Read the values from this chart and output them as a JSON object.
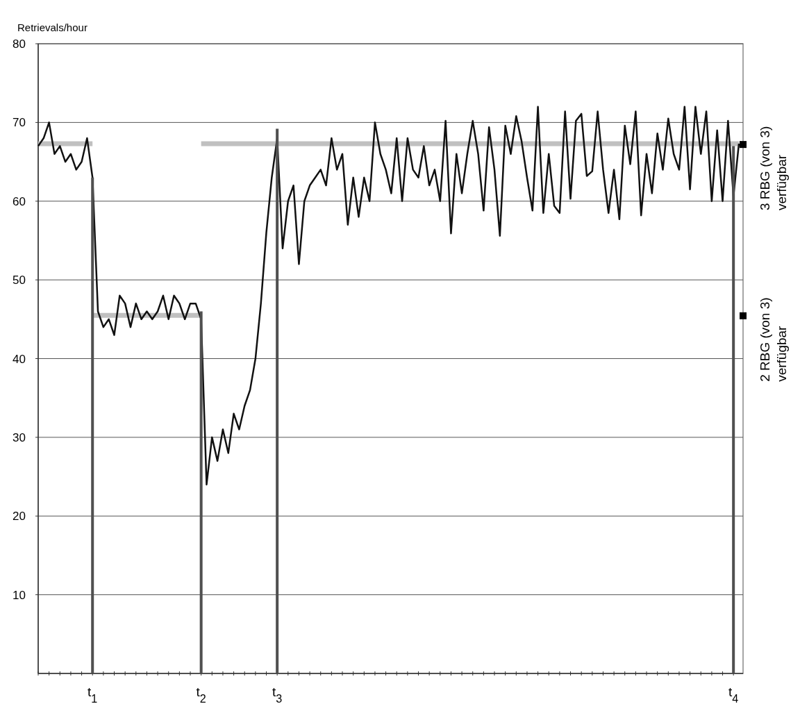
{
  "chart_data": {
    "type": "line",
    "ylabel": "Retrievals/hour",
    "ylim": [
      0,
      80
    ],
    "yticks": [
      10,
      20,
      30,
      40,
      50,
      60,
      70,
      80
    ],
    "categories": [
      null,
      null,
      null,
      null,
      null,
      null,
      null,
      null,
      null,
      null,
      "t$_{1}$",
      null,
      null,
      null,
      null,
      null,
      null,
      null,
      null,
      null,
      null,
      null,
      null,
      null,
      null,
      null,
      null,
      null,
      null,
      null,
      "t$_{2}$",
      null,
      null,
      null,
      null,
      null,
      null,
      null,
      null,
      null,
      null,
      null,
      null,
      null,
      "t$_{3}$",
      null,
      null,
      null,
      null,
      null,
      null,
      null,
      null,
      null,
      null,
      null,
      null,
      null,
      null,
      null,
      null,
      null,
      null,
      null,
      null,
      null,
      null,
      null,
      null,
      null,
      null,
      null,
      null,
      null,
      null,
      null,
      null,
      null,
      null,
      null,
      null,
      null,
      null,
      null,
      null,
      null,
      null,
      null,
      null,
      null,
      null,
      null,
      null,
      null,
      null,
      null,
      null,
      null,
      null,
      null,
      null,
      null,
      null,
      null,
      null,
      null,
      null,
      null,
      null,
      null,
      null,
      null,
      null,
      null,
      null,
      null,
      null,
      null,
      null,
      null,
      null,
      null,
      null,
      null,
      null,
      null,
      null,
      null,
      "t$_{4}$",
      null
    ],
    "grid": "y",
    "marker": "none",
    "line_style": "solid",
    "series": [
      {
        "color": "#c0c0c0",
        "values": [
          67.3,
          67.3,
          67.3,
          67.3,
          67.3,
          67.3,
          67.3,
          67.3,
          67.3,
          67.3,
          67.3,
          null,
          null,
          null,
          null,
          null,
          null,
          null,
          null,
          null,
          null,
          null,
          null,
          null,
          null,
          null,
          null,
          null,
          null,
          null,
          null,
          null,
          null,
          null,
          null,
          null,
          null,
          null,
          null,
          null,
          null,
          null,
          null,
          null,
          null,
          null,
          null,
          null,
          null,
          null,
          null,
          null,
          null,
          null,
          null,
          null,
          null,
          null,
          null,
          null,
          null,
          null,
          null,
          null,
          null,
          null,
          null,
          null,
          null,
          null,
          null,
          null,
          null,
          null,
          null,
          null,
          null,
          null,
          null,
          null,
          null,
          null,
          null,
          null,
          null,
          null,
          null,
          null,
          null,
          null,
          null,
          null,
          null,
          null,
          null,
          null,
          null,
          null,
          null,
          null,
          null,
          null,
          null,
          null,
          null,
          null,
          null,
          null,
          null,
          null,
          null,
          null,
          null,
          null,
          null,
          null,
          null,
          null,
          null,
          null,
          null,
          null,
          null,
          null,
          null,
          null,
          null,
          null,
          null,
          null
        ]
      },
      {
        "color": "#c0c0c0",
        "values": [
          null,
          null,
          null,
          null,
          null,
          null,
          null,
          null,
          null,
          null,
          45.5,
          45.5,
          45.5,
          45.5,
          45.5,
          45.5,
          45.5,
          45.5,
          45.5,
          45.5,
          45.5,
          45.5,
          45.5,
          45.5,
          45.5,
          45.5,
          45.5,
          45.5,
          45.5,
          45.5,
          45.5,
          null,
          null,
          null,
          null,
          null,
          null,
          null,
          null,
          null,
          null,
          null,
          null,
          null,
          null,
          null,
          null,
          null,
          null,
          null,
          null,
          null,
          null,
          null,
          null,
          null,
          null,
          null,
          null,
          null,
          null,
          null,
          null,
          null,
          null,
          null,
          null,
          null,
          null,
          null,
          null,
          null,
          null,
          null,
          null,
          null,
          null,
          null,
          null,
          null,
          null,
          null,
          null,
          null,
          null,
          null,
          null,
          null,
          null,
          null,
          null,
          null,
          null,
          null,
          null,
          null,
          null,
          null,
          null,
          null,
          null,
          null,
          null,
          null,
          null,
          null,
          null,
          null,
          null,
          null,
          null,
          null,
          null,
          null,
          null,
          null,
          null,
          null,
          null,
          null,
          null,
          null,
          null,
          null,
          null,
          null,
          null,
          null,
          null,
          null
        ]
      },
      {
        "color": "#c0c0c0",
        "values": [
          null,
          null,
          null,
          null,
          null,
          null,
          null,
          null,
          null,
          null,
          null,
          null,
          null,
          null,
          null,
          null,
          null,
          null,
          null,
          null,
          null,
          null,
          null,
          null,
          null,
          null,
          null,
          null,
          null,
          null,
          67.3,
          67.3,
          67.3,
          67.3,
          67.3,
          67.3,
          67.3,
          67.3,
          67.3,
          67.3,
          67.3,
          67.3,
          67.3,
          67.3,
          67.3,
          67.3,
          67.3,
          67.3,
          67.3,
          67.3,
          67.3,
          67.3,
          67.3,
          67.3,
          67.3,
          67.3,
          67.3,
          67.3,
          67.3,
          67.3,
          67.3,
          67.3,
          67.3,
          67.3,
          67.3,
          67.3,
          67.3,
          67.3,
          67.3,
          67.3,
          67.3,
          67.3,
          67.3,
          67.3,
          67.3,
          67.3,
          67.3,
          67.3,
          67.3,
          67.3,
          67.3,
          67.3,
          67.3,
          67.3,
          67.3,
          67.3,
          67.3,
          67.3,
          67.3,
          67.3,
          67.3,
          67.3,
          67.3,
          67.3,
          67.3,
          67.3,
          67.3,
          67.3,
          67.3,
          67.3,
          67.3,
          67.3,
          67.3,
          67.3,
          67.3,
          67.3,
          67.3,
          67.3,
          67.3,
          67.3,
          67.3,
          67.3,
          67.3,
          67.3,
          67.3,
          67.3,
          67.3,
          67.3,
          67.3,
          67.3,
          67.3,
          67.3,
          67.3,
          67.3,
          67.3,
          67.3,
          67.3,
          67.3,
          67.3,
          67.3
        ]
      },
      {
        "color": "#111111",
        "values": [
          67,
          68,
          70,
          66,
          67,
          65,
          66,
          64,
          65,
          68,
          63,
          46,
          44,
          45,
          43,
          48,
          47,
          44,
          47,
          45,
          46,
          45,
          46,
          48,
          45,
          48,
          47,
          45,
          47,
          47,
          45,
          24,
          30,
          27,
          31,
          28,
          33,
          31,
          34,
          36,
          40,
          47,
          56,
          63,
          68,
          54,
          60,
          62,
          52,
          60,
          62,
          63,
          64,
          62,
          68,
          64,
          66,
          57,
          63,
          58,
          63,
          60,
          70,
          66,
          64,
          61,
          68,
          60,
          68,
          64,
          63,
          67,
          62,
          64,
          60,
          70.2,
          55.9,
          66,
          61,
          66,
          70.2,
          66,
          58.8,
          69.4,
          64,
          55.6,
          69.6,
          66,
          70.8,
          67.6,
          63,
          58.8,
          72,
          58.5,
          66,
          59.4,
          58.5,
          71.4,
          60.3,
          70.2,
          71.1,
          63.2,
          63.8,
          71.4,
          64,
          58.5,
          64,
          57.7,
          69.6,
          64.7,
          71.4,
          58.2,
          66,
          61,
          68.6,
          64,
          70.5,
          66,
          64,
          72,
          61.5,
          72,
          66,
          71.4,
          60,
          69,
          60,
          70.2,
          60.6,
          67.3
        ]
      },
      {
        "type": "bar",
        "color": "#505050",
        "values": [
          null,
          null,
          null,
          null,
          null,
          null,
          null,
          null,
          null,
          null,
          63,
          null,
          null,
          null,
          null,
          null,
          null,
          null,
          null,
          null,
          null,
          null,
          null,
          null,
          null,
          null,
          null,
          null,
          null,
          null,
          46,
          null,
          null,
          null,
          null,
          null,
          null,
          null,
          null,
          null,
          null,
          null,
          null,
          null,
          69.2,
          null,
          null,
          null,
          null,
          null,
          null,
          null,
          null,
          null,
          null,
          null,
          null,
          null,
          null,
          null,
          null,
          null,
          null,
          null,
          null,
          null,
          null,
          null,
          null,
          null,
          null,
          null,
          null,
          null,
          null,
          null,
          null,
          null,
          null,
          null,
          null,
          null,
          null,
          null,
          null,
          null,
          null,
          null,
          null,
          null,
          null,
          null,
          null,
          null,
          null,
          null,
          null,
          null,
          null,
          null,
          null,
          null,
          null,
          null,
          null,
          null,
          null,
          null,
          null,
          null,
          null,
          null,
          null,
          null,
          null,
          null,
          null,
          null,
          null,
          null,
          null,
          null,
          null,
          null,
          null,
          null,
          null,
          null,
          67,
          null
        ]
      }
    ],
    "annotations": [
      "3 RBG (von 3) verfügbar",
      "2 RBG (von 3) verfügbar"
    ]
  }
}
